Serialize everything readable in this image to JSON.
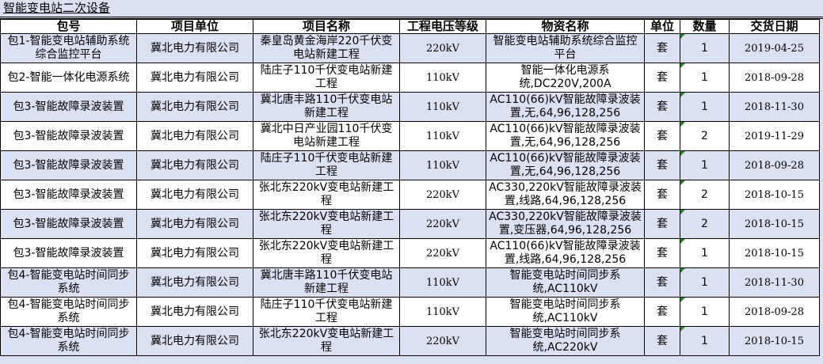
{
  "sheet_title": "智能变电站二次设备",
  "headers": [
    "包号",
    "项目单位",
    "项目名称",
    "工程电压等级",
    "物资名称",
    "单位",
    "数量",
    "交货日期"
  ],
  "rows": [
    [
      "包1-智能变电站辅助系统综合监控平台",
      "冀北电力有限公司",
      "秦皇岛黄金海岸220千伏变电站新建工程",
      "220kV",
      "智能变电站辅助系统综合监控平台",
      "套",
      "1",
      "2019-04-25"
    ],
    [
      "包2-智能一体化电源系统",
      "冀北电力有限公司",
      "陆庄子110千伏变电站新建工程",
      "110kV",
      "智能一体化电源系统,DC220V,200A",
      "套",
      "1",
      "2018-09-28"
    ],
    [
      "包3-智能故障录波装置",
      "冀北电力有限公司",
      "冀北唐丰路110千伏变电站新建工程",
      "110kV",
      "AC110(66)kV智能故障录波装置,无,64,96,128,256",
      "套",
      "1",
      "2018-11-30"
    ],
    [
      "包3-智能故障录波装置",
      "冀北电力有限公司",
      "冀北中日产业园110千伏变电站新建工程",
      "110kV",
      "AC110(66)kV智能故障录波装置,无,64,96,128,256",
      "套",
      "2",
      "2019-11-29"
    ],
    [
      "包3-智能故障录波装置",
      "冀北电力有限公司",
      "陆庄子110千伏变电站新建工程",
      "110kV",
      "AC110(66)kV智能故障录波装置,无,64,96,128,256",
      "套",
      "1",
      "2018-09-28"
    ],
    [
      "包3-智能故障录波装置",
      "冀北电力有限公司",
      "张北东220kV变电站新建工程",
      "220kV",
      "AC330,220kV智能故障录波装置,线路,64,96,128,256",
      "套",
      "2",
      "2018-10-15"
    ],
    [
      "包3-智能故障录波装置",
      "冀北电力有限公司",
      "张北东220kV变电站新建工程",
      "220kV",
      "AC330,220kV智能故障录波装置,变压器,64,96,128,256",
      "套",
      "2",
      "2018-10-15"
    ],
    [
      "包3-智能故障录波装置",
      "冀北电力有限公司",
      "张北东220kV变电站新建工程",
      "220kV",
      "AC110(66)kV智能故障录波装置,线路,64,96,128,256",
      "套",
      "1",
      "2018-10-15"
    ],
    [
      "包4-智能变电站时间同步系统",
      "冀北电力有限公司",
      "冀北唐丰路110千伏变电站新建工程",
      "110kV",
      "智能变电站时间同步系统,AC110kV",
      "套",
      "1",
      "2018-11-30"
    ],
    [
      "包4-智能变电站时间同步系统",
      "冀北电力有限公司",
      "陆庄子110千伏变电站新建工程",
      "110kV",
      "智能变电站时间同步系统,AC110kV",
      "套",
      "1",
      "2018-09-28"
    ],
    [
      "包4-智能变电站时间同步系统",
      "冀北电力有限公司",
      "张北东220kV变电站新建工程",
      "220kV",
      "智能变电站时间同步系统,AC220kV",
      "套",
      "1",
      "2018-10-15"
    ]
  ]
}
